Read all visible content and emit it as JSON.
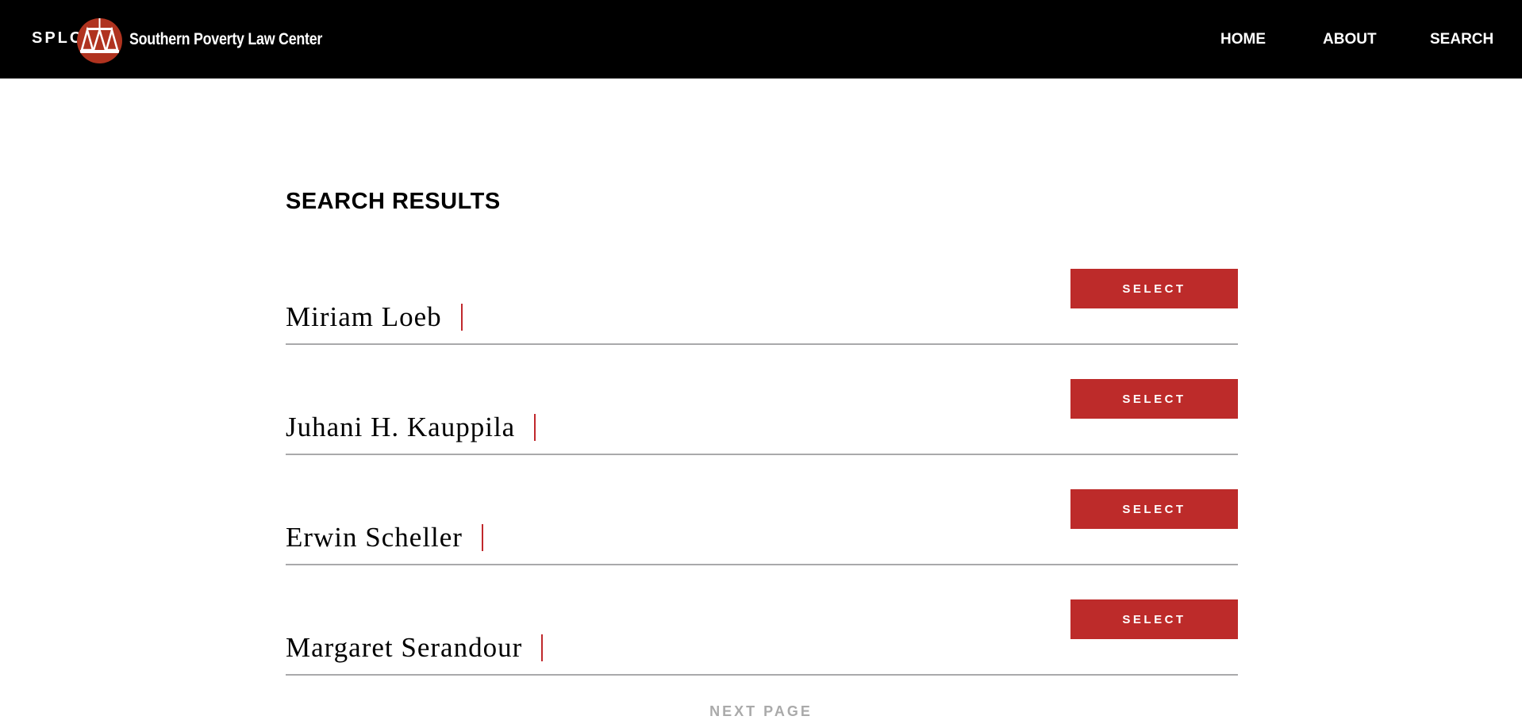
{
  "header": {
    "abbr": "SPLC",
    "org_name": "Southern Poverty Law Center",
    "logo_icon": "scales-of-justice-icon",
    "nav": [
      {
        "label": "HOME"
      },
      {
        "label": "ABOUT"
      },
      {
        "label": "SEARCH"
      }
    ]
  },
  "main": {
    "title": "SEARCH RESULTS",
    "select_label": "SELECT",
    "results": [
      {
        "name": "Miriam Loeb"
      },
      {
        "name": "Juhani H. Kauppila"
      },
      {
        "name": "Erwin Scheller"
      },
      {
        "name": "Margaret Serandour"
      }
    ],
    "next_label": "NEXT PAGE"
  },
  "colors": {
    "accent": "#bd2b2a",
    "nav_bg": "#000000",
    "logo": "#b0331f"
  }
}
